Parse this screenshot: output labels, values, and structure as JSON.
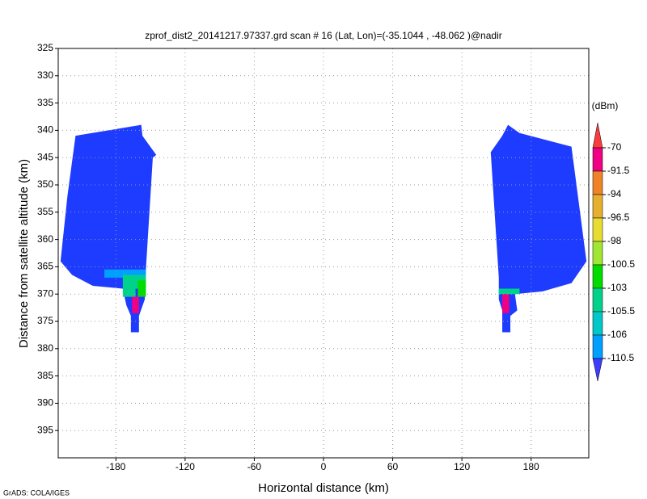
{
  "chart_data": {
    "type": "shaded",
    "title": "zprof_dist2_20141217.97337.grd  scan # 16  (Lat, Lon)=(-35.1044 , -48.062 )@nadir",
    "xlabel": "Horizontal distance (km)",
    "ylabel": "Distance from satellite altitude (km)",
    "footer": "GrADS: COLA/IGES",
    "xlim": [
      -230,
      230
    ],
    "xticks": [
      -180,
      -120,
      -60,
      0,
      60,
      120,
      180
    ],
    "ylim": [
      325,
      400
    ],
    "yticks": [
      325,
      330,
      335,
      340,
      345,
      350,
      355,
      360,
      365,
      370,
      375,
      380,
      385,
      390,
      395
    ],
    "grid": true,
    "regions": [
      {
        "color": "#1e3cff",
        "x": [
          -215,
          -158,
          -157,
          -145,
          -148,
          -154,
          -155,
          -160,
          -160,
          -167,
          -167,
          -171,
          -174,
          -200,
          -218,
          -228,
          -222
        ],
        "y": [
          341,
          339,
          341,
          344.5,
          345,
          365.5,
          371,
          374,
          377,
          377,
          374,
          372,
          369,
          368.5,
          366.5,
          364,
          352
        ]
      },
      {
        "color": "#1e3cff",
        "x": [
          160,
          170,
          215,
          228,
          215,
          190,
          166,
          168,
          162,
          162,
          155,
          155,
          152,
          152,
          145,
          155
        ],
        "y": [
          339,
          340.5,
          343,
          364,
          368,
          369.5,
          370,
          373,
          374,
          377,
          377,
          373,
          371,
          367,
          344,
          341
        ]
      },
      {
        "color": "#00a0ff",
        "x": [
          -190,
          -154,
          -154,
          -190
        ],
        "y": [
          365.5,
          365.5,
          367,
          367
        ]
      },
      {
        "color": "#00d28c",
        "x": [
          -174,
          -154,
          -154,
          -163,
          -163,
          -174
        ],
        "y": [
          366.5,
          366.5,
          369,
          369,
          370.5,
          370.5
        ]
      },
      {
        "color": "#00dc00",
        "x": [
          -161,
          -154,
          -154,
          -161
        ],
        "y": [
          367.5,
          367.5,
          370.5,
          370.5
        ]
      },
      {
        "color": "#f00082",
        "x": [
          -166,
          -160,
          -160,
          -166
        ],
        "y": [
          370.5,
          370.5,
          373.5,
          373.5
        ]
      },
      {
        "color": "#00d28c",
        "x": [
          152,
          170,
          170,
          152
        ],
        "y": [
          369,
          369,
          370,
          370
        ]
      },
      {
        "color": "#f00082",
        "x": [
          155,
          161,
          161,
          155
        ],
        "y": [
          370,
          370,
          373.5,
          373.5
        ]
      }
    ],
    "colorbar": {
      "unit": "(dBm)",
      "labels": [
        -70,
        -91.5,
        -94,
        -96.5,
        -98,
        -100.5,
        -103,
        -105.5,
        -106,
        -110.5
      ],
      "colors": [
        "#fa3c3c",
        "#f00082",
        "#f08228",
        "#e6af2d",
        "#e6dc32",
        "#a0e632",
        "#00dc00",
        "#00d28c",
        "#00c8c8",
        "#00a0ff",
        "#3c3cff"
      ]
    }
  }
}
